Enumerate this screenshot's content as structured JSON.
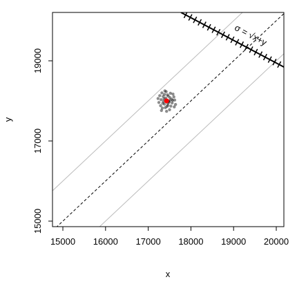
{
  "chart_data": {
    "type": "scatter",
    "x_label": "x",
    "y_label": "y",
    "xlim": [
      14757,
      20178
    ],
    "ylim": [
      14862,
      20207
    ],
    "xticks": [
      15000,
      16000,
      17000,
      18000,
      19000,
      20000
    ],
    "yticks": [
      15000,
      17000,
      19000
    ],
    "point_color": "#000000",
    "x": [
      17430,
      17380,
      17510,
      17300,
      17560,
      17450,
      17290,
      17620,
      17400,
      17480,
      17350,
      17530,
      17250,
      17600,
      17420,
      17370,
      17500,
      17460,
      17330,
      17580,
      17410,
      17270,
      17640,
      17440,
      17520,
      17360,
      17490,
      17310,
      17550,
      17390,
      17470,
      17340,
      17610,
      17230,
      17430,
      17500,
      17380,
      17460,
      17570,
      17320
    ],
    "y": [
      18000,
      17920,
      18080,
      18030,
      17950,
      18150,
      17880,
      18020,
      17830,
      17990,
      18110,
      17870,
      17960,
      18100,
      18230,
      18050,
      17780,
      17940,
      17820,
      18170,
      18070,
      18130,
      17910,
      17860,
      18190,
      17990,
      17970,
      17760,
      18040,
      18250,
      18120,
      17940,
      17850,
      18060,
      17740,
      18010,
      18160,
      17890,
      18010,
      18200
    ],
    "center": {
      "x": 17430,
      "y": 18000,
      "color": "#ff0000"
    },
    "reference_lines": [
      {
        "slope": 1,
        "intercept": 0,
        "dashed": true,
        "color": "#000000"
      },
      {
        "slope": 1,
        "intercept": 1000,
        "dashed": false,
        "color": "#bbbbbb"
      },
      {
        "slope": 1,
        "intercept": -1000,
        "dashed": false,
        "color": "#bbbbbb"
      }
    ],
    "sigma_axis": {
      "label": "σ = √x+y",
      "x": [
        17767,
        20178
      ],
      "y": [
        20207,
        18845
      ]
    }
  }
}
